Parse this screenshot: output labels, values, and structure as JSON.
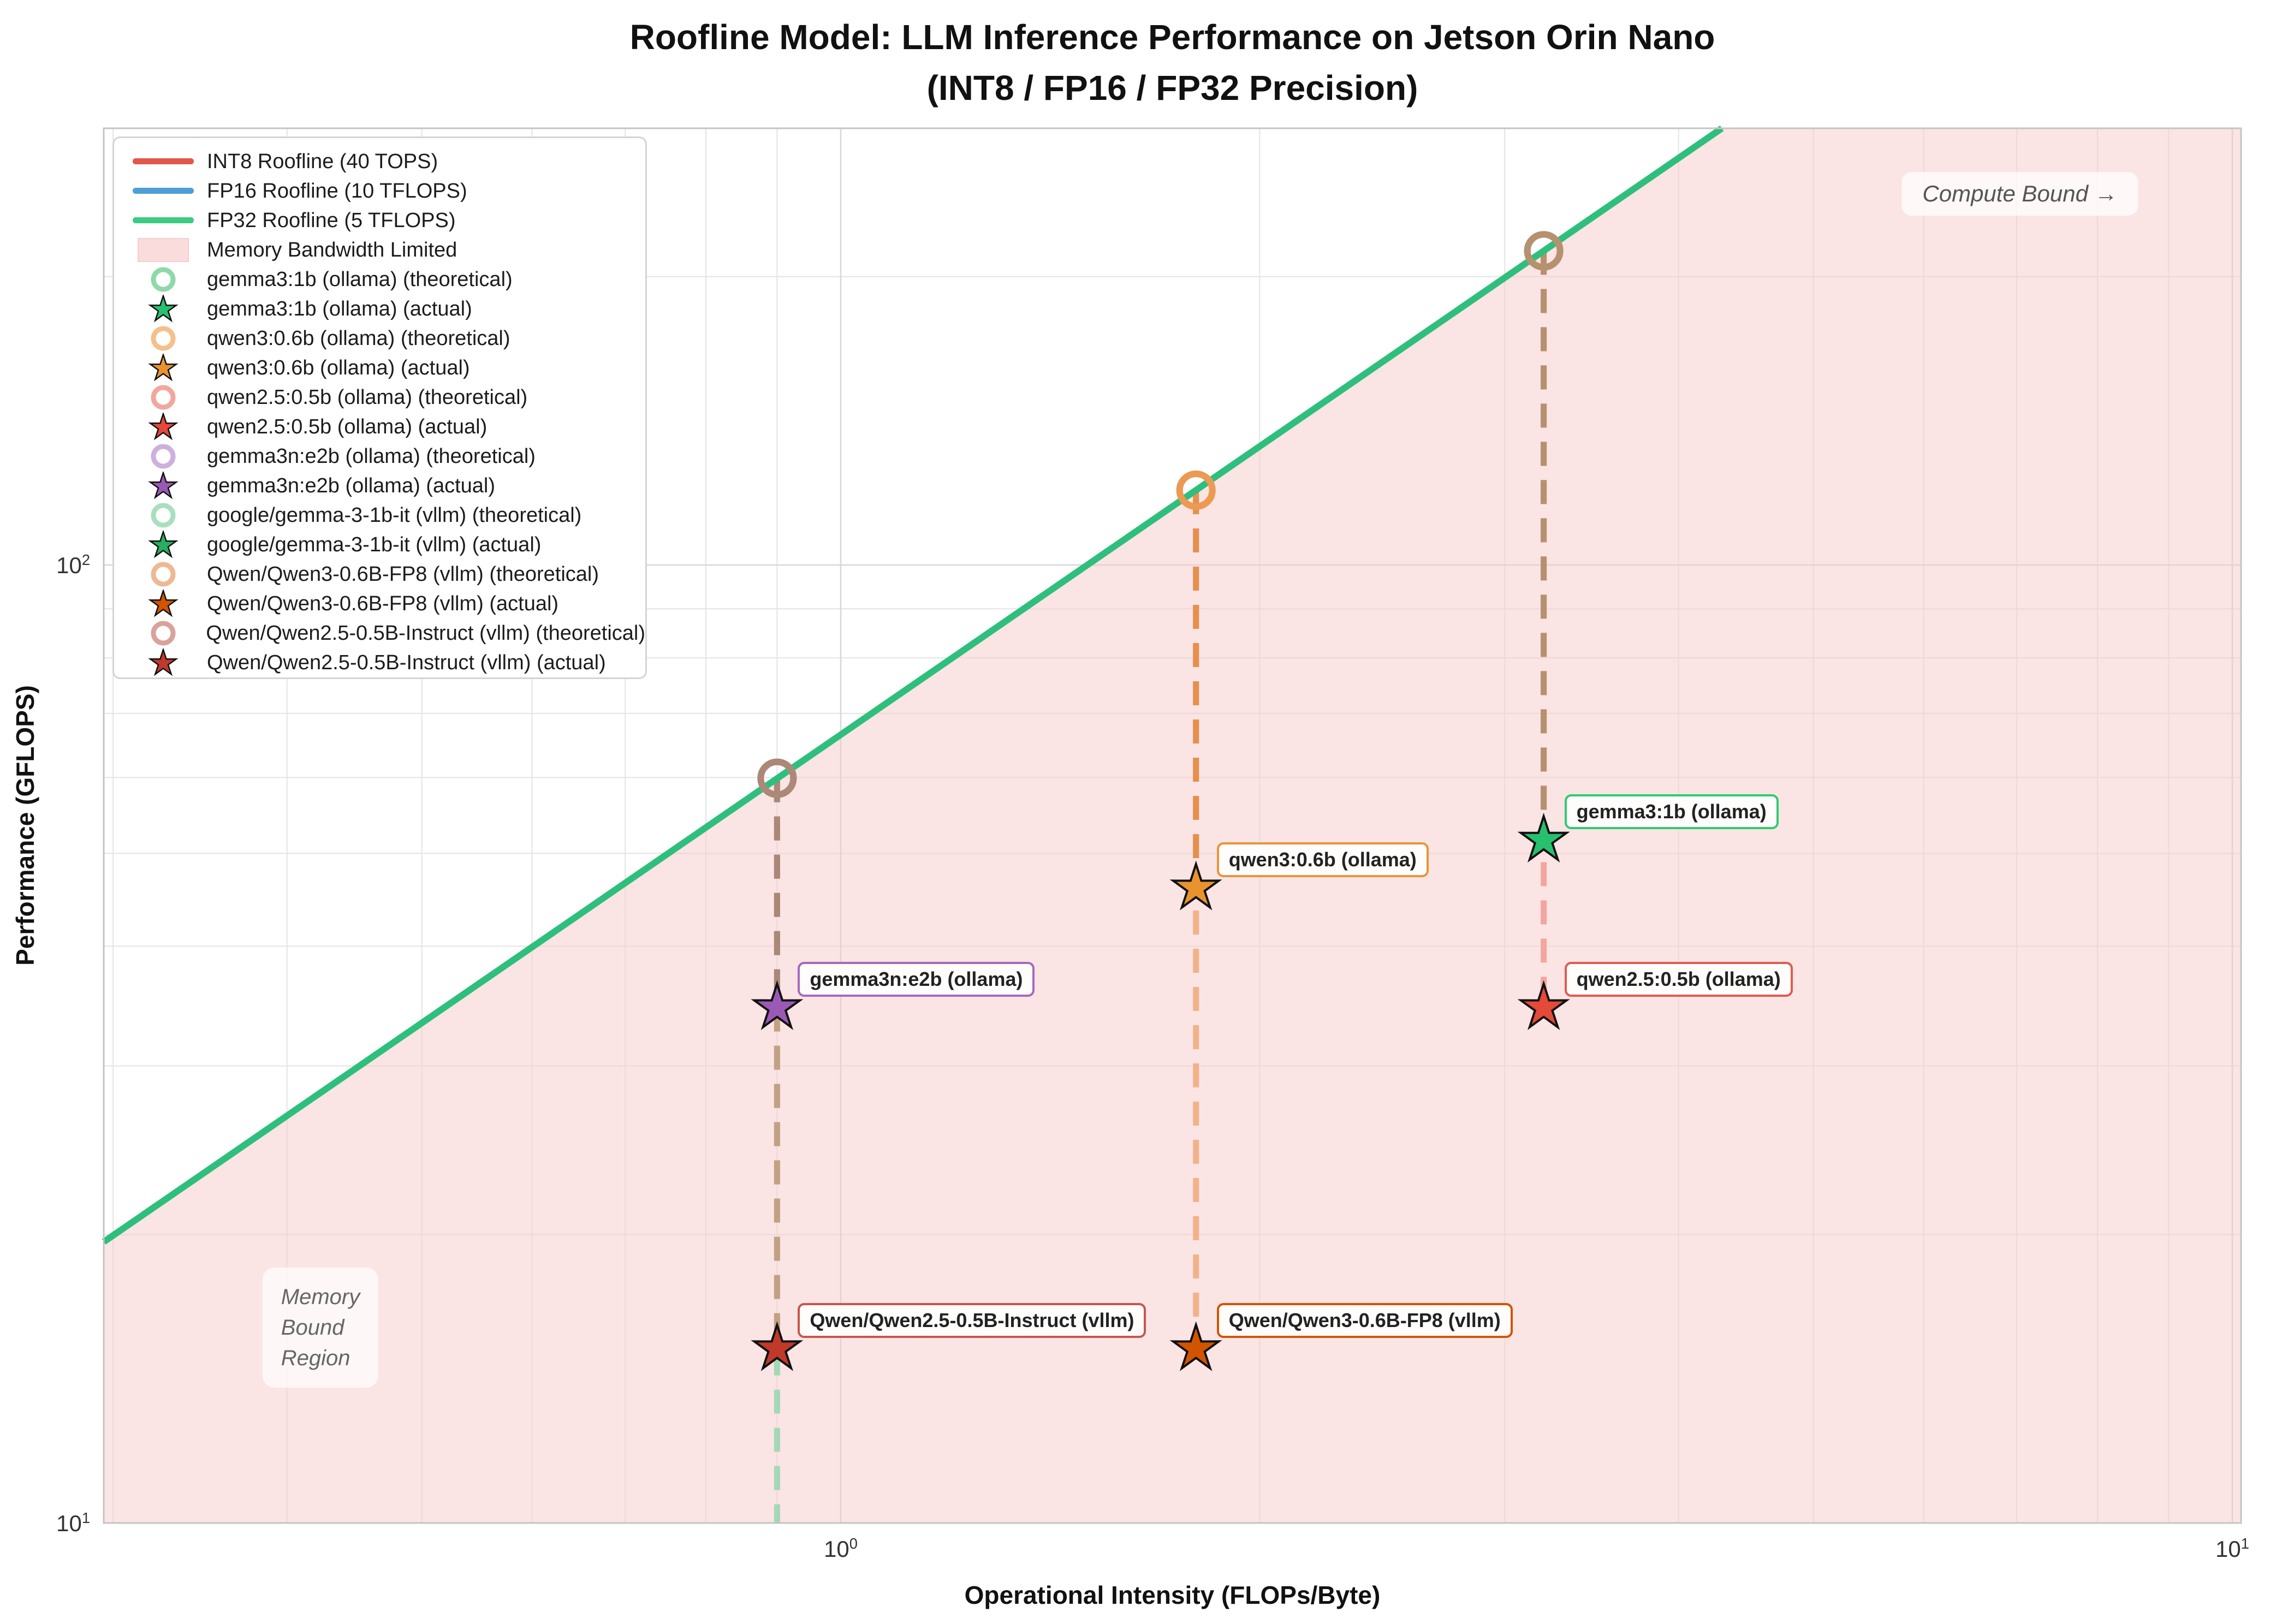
{
  "figure": {
    "title_line1": "Roofline Model: LLM Inference Performance on Jetson Orin Nano",
    "title_line2": "(INT8 / FP16 / FP32 Precision)"
  },
  "axes": {
    "xlabel": "Operational Intensity (FLOPs/Byte)",
    "ylabel": "Performance (GFLOPS)",
    "x_ticks": [
      {
        "base": "10",
        "exp": "0",
        "value": 1
      },
      {
        "base": "10",
        "exp": "1",
        "value": 10
      }
    ],
    "y_ticks": [
      {
        "base": "10",
        "exp": "1",
        "value": 10
      },
      {
        "base": "10",
        "exp": "2",
        "value": 100
      }
    ],
    "x_minor": [
      0.3,
      0.4,
      0.5,
      0.6,
      0.7,
      0.8,
      0.9,
      2,
      3,
      4,
      5,
      6,
      7,
      8,
      9
    ],
    "y_minor": [
      20,
      30,
      40,
      50,
      60,
      70,
      80,
      90,
      200
    ],
    "x_range": [
      0.295,
      10.16
    ],
    "y_range": [
      10,
      286
    ],
    "grid": true,
    "scale": "log-log"
  },
  "chart_data": {
    "type": "scatter",
    "subtype": "roofline",
    "title": "Roofline Model: LLM Inference Performance on Jetson Orin Nano (INT8 / FP16 / FP32 Precision)",
    "xlabel": "Operational Intensity (FLOPs/Byte)",
    "ylabel": "Performance (GFLOPS)",
    "legend_position": "upper left",
    "memory_bandwidth_gbps": 66.5,
    "rooflines": [
      {
        "label": "INT8 Roofline (40 TOPS)",
        "color": "#e0584b"
      },
      {
        "label": "FP16 Roofline (10 TFLOPS)",
        "color": "#4d9fd6"
      },
      {
        "label": "FP32 Roofline (5 TFLOPS)",
        "color": "#2fbf7c"
      }
    ],
    "region": {
      "label": "Memory Bandwidth Limited",
      "color": "#fbdcdc"
    },
    "models": [
      {
        "name": "google/gemma-3-1b-it (vllm)",
        "oi": 0.9,
        "theoretical_gflops": 59.9,
        "actual_gflops": null,
        "note": "actual point below 10 GFLOPS (off-chart, dashed line exits bottom)",
        "star_color": "#27ae60",
        "plot_circle_color": "#a9dfbf",
        "connector_color": "#a3d9b5",
        "label": null
      },
      {
        "name": "Qwen/Qwen2.5-0.5B-Instruct (vllm)",
        "oi": 0.9,
        "theoretical_gflops": 59.9,
        "actual_gflops": 15.2,
        "star_color": "#c0392b",
        "plot_circle_color": "#c9a08e",
        "connector_color": "#c2a183",
        "label": {
          "border": "#c8564c"
        }
      },
      {
        "name": "gemma3n:e2b (ollama)",
        "oi": 0.9,
        "theoretical_gflops": 59.9,
        "actual_gflops": 34.5,
        "star_color": "#9b59b6",
        "plot_circle_color": "#ab8878",
        "connector_color": "#a98878",
        "label": {
          "border": "#a569bd"
        }
      },
      {
        "name": "Qwen/Qwen3-0.6B-FP8 (vllm)",
        "oi": 1.8,
        "theoretical_gflops": 119.7,
        "actual_gflops": 15.2,
        "star_color": "#d35400",
        "plot_circle_color": "#eda767",
        "connector_color": "#f2b289",
        "label": {
          "border": "#d35400"
        }
      },
      {
        "name": "qwen3:0.6b (ollama)",
        "oi": 1.8,
        "theoretical_gflops": 119.7,
        "actual_gflops": 46,
        "star_color": "#e9932f",
        "plot_circle_color": "#ec9a52",
        "connector_color": "#e6904e",
        "label": {
          "border": "#e8953a"
        }
      },
      {
        "name": "qwen2.5:0.5b (ollama)",
        "oi": 3.2,
        "theoretical_gflops": 212.8,
        "actual_gflops": 34.5,
        "star_color": "#e4493a",
        "plot_circle_color": "#c59a82",
        "connector_color": "#f2a69e",
        "label": {
          "border": "#e05c50"
        }
      },
      {
        "name": "gemma3:1b (ollama)",
        "oi": 3.2,
        "theoretical_gflops": 212.8,
        "actual_gflops": 51.6,
        "star_color": "#27c06e",
        "plot_circle_color": "#b5916f",
        "connector_color": "#b5916f",
        "label": {
          "border": "#2ecc71"
        }
      }
    ],
    "annotations": {
      "compute_bound": "Compute Bound →",
      "memory_bound": "Memory\nBound\nRegion"
    }
  },
  "legend": {
    "items": [
      {
        "marker": "line",
        "color": "#e0584b",
        "label": "INT8 Roofline (40 TOPS)"
      },
      {
        "marker": "line",
        "color": "#4d9fd6",
        "label": "FP16 Roofline (10 TFLOPS)"
      },
      {
        "marker": "line",
        "color": "#3bcb82",
        "label": "FP32 Roofline (5 TFLOPS)"
      },
      {
        "marker": "patch",
        "color": "#fbdcdc",
        "label": "Memory Bandwidth Limited"
      },
      {
        "marker": "circle",
        "color": "#8fd9a8",
        "label": "gemma3:1b (ollama) (theoretical)"
      },
      {
        "marker": "star",
        "color": "#27c06e",
        "label": "gemma3:1b (ollama) (actual)"
      },
      {
        "marker": "circle",
        "color": "#f5c08a",
        "label": "qwen3:0.6b (ollama) (theoretical)"
      },
      {
        "marker": "star",
        "color": "#e9932f",
        "label": "qwen3:0.6b (ollama) (actual)"
      },
      {
        "marker": "circle",
        "color": "#f2a79e",
        "label": "qwen2.5:0.5b (ollama) (theoretical)"
      },
      {
        "marker": "star",
        "color": "#e4493a",
        "label": "qwen2.5:0.5b (ollama) (actual)"
      },
      {
        "marker": "circle",
        "color": "#cdb0de",
        "label": "gemma3n:e2b (ollama) (theoretical)"
      },
      {
        "marker": "star",
        "color": "#9b59b6",
        "label": "gemma3n:e2b (ollama) (actual)"
      },
      {
        "marker": "circle",
        "color": "#a9dfbf",
        "label": "google/gemma-3-1b-it (vllm) (theoretical)"
      },
      {
        "marker": "star",
        "color": "#27ae60",
        "label": "google/gemma-3-1b-it (vllm) (actual)"
      },
      {
        "marker": "circle",
        "color": "#eeb894",
        "label": "Qwen/Qwen3-0.6B-FP8 (vllm) (theoretical)"
      },
      {
        "marker": "star",
        "color": "#d35400",
        "label": "Qwen/Qwen3-0.6B-FP8 (vllm) (actual)"
      },
      {
        "marker": "circle",
        "color": "#d9a39b",
        "label": "Qwen/Qwen2.5-0.5B-Instruct (vllm) (theoretical)"
      },
      {
        "marker": "star",
        "color": "#c0392b",
        "label": "Qwen/Qwen2.5-0.5B-Instruct (vllm) (actual)"
      }
    ]
  }
}
